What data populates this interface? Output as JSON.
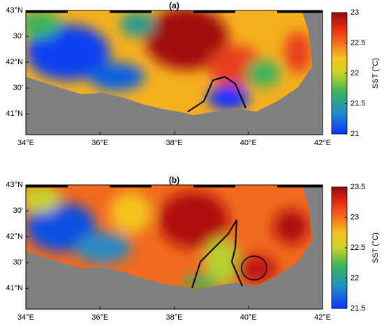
{
  "panels": [
    {
      "label": "(a)",
      "xlim": [
        34,
        42
      ],
      "ylim": [
        40.6,
        43
      ],
      "lat_ticks": [
        {
          "value": 43,
          "label": "43°N"
        },
        {
          "value": 42.5,
          "label": "30'"
        },
        {
          "value": 42,
          "label": "42°N"
        },
        {
          "value": 41.5,
          "label": "30'"
        },
        {
          "value": 41,
          "label": "41°N"
        }
      ],
      "lon_ticks": [
        {
          "value": 34,
          "label": "34°E"
        },
        {
          "value": 36,
          "label": "36°E"
        },
        {
          "value": 38,
          "label": "38°E"
        },
        {
          "value": 40,
          "label": "40°E"
        },
        {
          "value": 42,
          "label": "42°E"
        }
      ],
      "colorbar": {
        "label": "SST (°C)",
        "lim": [
          21,
          23
        ],
        "ticks": [
          21,
          21.5,
          22,
          22.5,
          23
        ]
      }
    },
    {
      "label": "(b)",
      "xlim": [
        34,
        42
      ],
      "ylim": [
        40.6,
        43
      ],
      "lat_ticks": [
        {
          "value": 43,
          "label": "43°N"
        },
        {
          "value": 42.5,
          "label": "30'"
        },
        {
          "value": 42,
          "label": "42°N"
        },
        {
          "value": 41.5,
          "label": "30'"
        },
        {
          "value": 41,
          "label": "41°N"
        }
      ],
      "lon_ticks": [
        {
          "value": 34,
          "label": "34°E"
        },
        {
          "value": 36,
          "label": "36°E"
        },
        {
          "value": 38,
          "label": "38°E"
        },
        {
          "value": 40,
          "label": "40°E"
        },
        {
          "value": 42,
          "label": "42°E"
        }
      ],
      "colorbar": {
        "label": "SST (°C)",
        "lim": [
          21.5,
          23.5
        ],
        "ticks": [
          21.5,
          22,
          22.5,
          23,
          23.5
        ]
      }
    }
  ]
}
